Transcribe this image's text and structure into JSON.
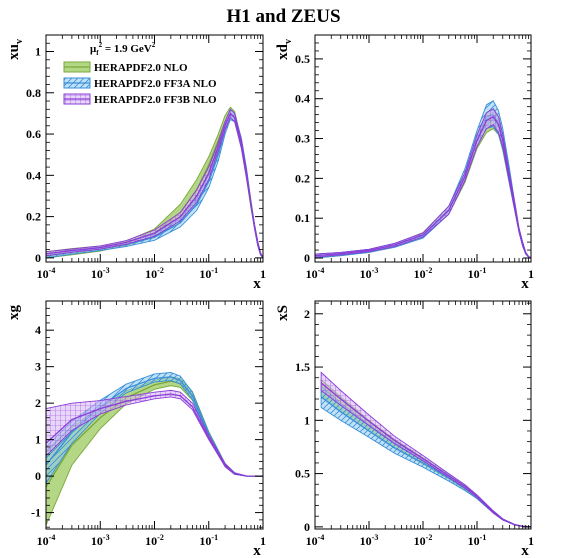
{
  "title": "H1 and ZEUS",
  "legend": {
    "scale_label": "μ",
    "scale_sub": "f",
    "scale_sup": "2",
    "scale_value": "= 1.9 GeV",
    "scale_value_sup": "2",
    "entries": [
      {
        "name": "HERAPDF2.0 NLO",
        "color": "#7aa83a",
        "fill": "#9bc95e",
        "pattern": "solid"
      },
      {
        "name": "HERAPDF2.0 FF3A NLO",
        "color": "#3a8fd8",
        "fill": "#8cc8f0",
        "pattern": "hatch"
      },
      {
        "name": "HERAPDF2.0 FF3B NLO",
        "color": "#8a3cd8",
        "fill": "#d6b5f5",
        "pattern": "grid"
      }
    ]
  },
  "x_ticks": [
    {
      "base": "10",
      "exp": "-4"
    },
    {
      "base": "10",
      "exp": "-3"
    },
    {
      "base": "10",
      "exp": "-2"
    },
    {
      "base": "10",
      "exp": "-1"
    },
    {
      "base": "1",
      "exp": ""
    }
  ],
  "chart_data": [
    {
      "id": "xuv",
      "type": "area",
      "xscale": "log",
      "xlim": [
        0.0001,
        1
      ],
      "ylim": [
        -0.02,
        1.08
      ],
      "ylabel_main": "xu",
      "ylabel_sub": "v",
      "xlabel": "x",
      "yticks": [
        0,
        0.2,
        0.4,
        0.6,
        0.8,
        1
      ],
      "ytick_labels": [
        "0",
        "0.2",
        "0.4",
        "0.6",
        "0.8",
        "1"
      ],
      "x": [
        0.0001,
        0.0003,
        0.001,
        0.003,
        0.01,
        0.03,
        0.06,
        0.1,
        0.15,
        0.2,
        0.25,
        0.3,
        0.4,
        0.5,
        0.6,
        0.7,
        0.8,
        0.9,
        1.0
      ],
      "series": [
        {
          "name": "HERAPDF2.0 NLO",
          "central": [
            0.015,
            0.03,
            0.045,
            0.07,
            0.12,
            0.22,
            0.33,
            0.45,
            0.57,
            0.66,
            0.7,
            0.68,
            0.55,
            0.4,
            0.26,
            0.15,
            0.07,
            0.02,
            0.0
          ],
          "lower": [
            0.0,
            0.015,
            0.033,
            0.06,
            0.1,
            0.18,
            0.28,
            0.42,
            0.55,
            0.64,
            0.68,
            0.66,
            0.53,
            0.38,
            0.24,
            0.14,
            0.06,
            0.015,
            0.0
          ],
          "upper": [
            0.03,
            0.045,
            0.058,
            0.082,
            0.14,
            0.26,
            0.38,
            0.49,
            0.6,
            0.69,
            0.73,
            0.71,
            0.57,
            0.42,
            0.28,
            0.16,
            0.08,
            0.025,
            0.0
          ]
        },
        {
          "name": "HERAPDF2.0 FF3A NLO",
          "central": [
            0.01,
            0.028,
            0.044,
            0.065,
            0.1,
            0.17,
            0.26,
            0.37,
            0.5,
            0.62,
            0.69,
            0.68,
            0.56,
            0.41,
            0.26,
            0.15,
            0.07,
            0.02,
            0.0
          ],
          "lower": [
            0.0,
            0.018,
            0.036,
            0.055,
            0.085,
            0.15,
            0.23,
            0.34,
            0.47,
            0.6,
            0.67,
            0.66,
            0.54,
            0.39,
            0.25,
            0.14,
            0.06,
            0.015,
            0.0
          ],
          "upper": [
            0.02,
            0.038,
            0.052,
            0.075,
            0.115,
            0.19,
            0.29,
            0.4,
            0.53,
            0.65,
            0.72,
            0.7,
            0.58,
            0.43,
            0.27,
            0.16,
            0.08,
            0.025,
            0.0
          ]
        },
        {
          "name": "HERAPDF2.0 FF3B NLO",
          "central": [
            0.02,
            0.035,
            0.05,
            0.075,
            0.12,
            0.2,
            0.3,
            0.41,
            0.54,
            0.64,
            0.7,
            0.68,
            0.55,
            0.4,
            0.26,
            0.15,
            0.07,
            0.02,
            0.0
          ],
          "lower": [
            0.01,
            0.027,
            0.042,
            0.066,
            0.105,
            0.18,
            0.27,
            0.38,
            0.52,
            0.62,
            0.68,
            0.66,
            0.53,
            0.38,
            0.25,
            0.14,
            0.06,
            0.015,
            0.0
          ],
          "upper": [
            0.03,
            0.043,
            0.058,
            0.084,
            0.135,
            0.22,
            0.33,
            0.44,
            0.56,
            0.66,
            0.72,
            0.7,
            0.57,
            0.42,
            0.27,
            0.16,
            0.08,
            0.025,
            0.0
          ]
        }
      ]
    },
    {
      "id": "xdv",
      "type": "area",
      "xscale": "log",
      "xlim": [
        0.0001,
        1
      ],
      "ylim": [
        -0.01,
        0.56
      ],
      "ylabel_main": "xd",
      "ylabel_sub": "v",
      "xlabel": "x",
      "yticks": [
        0,
        0.1,
        0.2,
        0.3,
        0.4,
        0.5
      ],
      "ytick_labels": [
        "0",
        "0.1",
        "0.2",
        "0.3",
        "0.4",
        "0.5"
      ],
      "x": [
        0.0001,
        0.0003,
        0.001,
        0.003,
        0.01,
        0.03,
        0.06,
        0.1,
        0.15,
        0.2,
        0.25,
        0.3,
        0.4,
        0.5,
        0.6,
        0.7,
        0.8,
        0.9,
        1.0
      ],
      "series": [
        {
          "name": "HERAPDF2.0 NLO",
          "central": [
            0.005,
            0.01,
            0.018,
            0.032,
            0.058,
            0.12,
            0.2,
            0.29,
            0.34,
            0.35,
            0.33,
            0.29,
            0.2,
            0.13,
            0.07,
            0.035,
            0.012,
            0.003,
            0.0
          ],
          "lower": [
            0.0,
            0.006,
            0.014,
            0.028,
            0.052,
            0.11,
            0.19,
            0.275,
            0.315,
            0.325,
            0.31,
            0.27,
            0.185,
            0.12,
            0.065,
            0.03,
            0.01,
            0.002,
            0.0
          ],
          "upper": [
            0.01,
            0.014,
            0.022,
            0.036,
            0.064,
            0.13,
            0.215,
            0.305,
            0.365,
            0.375,
            0.355,
            0.31,
            0.215,
            0.14,
            0.075,
            0.04,
            0.014,
            0.004,
            0.0
          ]
        },
        {
          "name": "HERAPDF2.0 FF3A NLO",
          "central": [
            0.005,
            0.01,
            0.018,
            0.032,
            0.056,
            0.12,
            0.21,
            0.3,
            0.355,
            0.36,
            0.34,
            0.3,
            0.205,
            0.13,
            0.07,
            0.035,
            0.012,
            0.003,
            0.0
          ],
          "lower": [
            0.0,
            0.006,
            0.014,
            0.027,
            0.05,
            0.11,
            0.195,
            0.28,
            0.325,
            0.33,
            0.31,
            0.275,
            0.185,
            0.12,
            0.065,
            0.03,
            0.01,
            0.002,
            0.0
          ],
          "upper": [
            0.01,
            0.014,
            0.022,
            0.037,
            0.062,
            0.13,
            0.225,
            0.32,
            0.385,
            0.395,
            0.37,
            0.325,
            0.225,
            0.14,
            0.075,
            0.04,
            0.014,
            0.004,
            0.0
          ]
        },
        {
          "name": "HERAPDF2.0 FF3B NLO",
          "central": [
            0.006,
            0.011,
            0.019,
            0.033,
            0.058,
            0.12,
            0.205,
            0.295,
            0.345,
            0.355,
            0.335,
            0.295,
            0.2,
            0.13,
            0.07,
            0.035,
            0.012,
            0.003,
            0.0
          ],
          "lower": [
            0.002,
            0.008,
            0.016,
            0.029,
            0.053,
            0.11,
            0.195,
            0.28,
            0.325,
            0.335,
            0.315,
            0.28,
            0.19,
            0.12,
            0.065,
            0.03,
            0.01,
            0.002,
            0.0
          ],
          "upper": [
            0.01,
            0.014,
            0.022,
            0.037,
            0.063,
            0.13,
            0.215,
            0.31,
            0.365,
            0.375,
            0.355,
            0.31,
            0.21,
            0.14,
            0.075,
            0.04,
            0.014,
            0.004,
            0.0
          ]
        }
      ]
    },
    {
      "id": "xg",
      "type": "area",
      "xscale": "log",
      "xlim": [
        0.0001,
        1
      ],
      "ylim": [
        -1.45,
        4.8
      ],
      "ylabel_main": "xg",
      "ylabel_sub": "",
      "xlabel": "x",
      "yticks": [
        -1,
        0,
        1,
        2,
        3,
        4
      ],
      "ytick_labels": [
        "-1",
        "0",
        "1",
        "2",
        "3",
        "4"
      ],
      "x": [
        0.0001,
        0.0003,
        0.001,
        0.003,
        0.01,
        0.02,
        0.03,
        0.05,
        0.1,
        0.2,
        0.3,
        0.5,
        0.7,
        1.0
      ],
      "series": [
        {
          "name": "HERAPDF2.0 NLO",
          "central": [
            -0.3,
            0.85,
            1.6,
            2.15,
            2.5,
            2.6,
            2.55,
            2.2,
            1.15,
            0.3,
            0.07,
            0.0,
            0.0,
            0.0
          ],
          "lower": [
            -1.35,
            0.3,
            1.3,
            1.98,
            2.38,
            2.48,
            2.43,
            2.08,
            1.08,
            0.25,
            0.05,
            0.0,
            0.0,
            0.0
          ],
          "upper": [
            0.7,
            1.35,
            1.88,
            2.33,
            2.63,
            2.72,
            2.67,
            2.32,
            1.22,
            0.35,
            0.09,
            0.0,
            0.0,
            0.0
          ]
        },
        {
          "name": "HERAPDF2.0 FF3A NLO",
          "central": [
            0.3,
            1.2,
            1.9,
            2.4,
            2.68,
            2.72,
            2.62,
            2.2,
            1.12,
            0.3,
            0.07,
            0.0,
            0.0,
            0.0
          ],
          "lower": [
            -0.2,
            0.9,
            1.72,
            2.28,
            2.58,
            2.62,
            2.52,
            2.1,
            1.05,
            0.26,
            0.05,
            0.0,
            0.0,
            0.0
          ],
          "upper": [
            0.8,
            1.5,
            2.08,
            2.52,
            2.8,
            2.84,
            2.74,
            2.3,
            1.2,
            0.34,
            0.09,
            0.0,
            0.0,
            0.0
          ]
        },
        {
          "name": "HERAPDF2.0 FF3B NLO",
          "central": [
            0.9,
            1.55,
            1.85,
            2.05,
            2.2,
            2.25,
            2.2,
            1.9,
            1.05,
            0.3,
            0.07,
            0.0,
            0.0,
            0.0
          ],
          "lower": [
            0.55,
            1.25,
            1.7,
            1.95,
            2.12,
            2.17,
            2.12,
            1.82,
            1.0,
            0.26,
            0.05,
            0.0,
            0.0,
            0.0
          ],
          "upper": [
            1.85,
            2.0,
            2.07,
            2.18,
            2.3,
            2.35,
            2.3,
            2.0,
            1.12,
            0.34,
            0.09,
            0.0,
            0.0,
            0.0
          ]
        }
      ]
    },
    {
      "id": "xS",
      "type": "area",
      "xscale": "log",
      "xlim": [
        0.0001,
        1
      ],
      "ylim": [
        -0.02,
        2.12
      ],
      "ylabel_main": "xS",
      "ylabel_sub": "",
      "xlabel": "x",
      "yticks": [
        0,
        0.5,
        1,
        1.5,
        2
      ],
      "ytick_labels": [
        "0",
        "0.5",
        "1",
        "1.5",
        "2"
      ],
      "x": [
        0.00013,
        0.0003,
        0.001,
        0.003,
        0.01,
        0.03,
        0.06,
        0.1,
        0.2,
        0.3,
        0.5,
        0.7,
        1.0
      ],
      "series": [
        {
          "name": "HERAPDF2.0 NLO",
          "central": [
            1.3,
            1.15,
            0.95,
            0.78,
            0.62,
            0.47,
            0.37,
            0.28,
            0.14,
            0.07,
            0.02,
            0.005,
            0.0
          ],
          "lower": [
            1.22,
            1.08,
            0.9,
            0.74,
            0.59,
            0.45,
            0.35,
            0.265,
            0.13,
            0.065,
            0.018,
            0.004,
            0.0
          ],
          "upper": [
            1.38,
            1.22,
            1.0,
            0.82,
            0.65,
            0.49,
            0.39,
            0.295,
            0.15,
            0.075,
            0.022,
            0.006,
            0.0
          ]
        },
        {
          "name": "HERAPDF2.0 FF3A NLO",
          "central": [
            1.22,
            1.08,
            0.9,
            0.74,
            0.6,
            0.46,
            0.36,
            0.28,
            0.14,
            0.07,
            0.02,
            0.005,
            0.0
          ],
          "lower": [
            1.12,
            1.0,
            0.84,
            0.69,
            0.56,
            0.43,
            0.34,
            0.265,
            0.13,
            0.065,
            0.018,
            0.004,
            0.0
          ],
          "upper": [
            1.32,
            1.16,
            0.96,
            0.79,
            0.64,
            0.49,
            0.38,
            0.295,
            0.15,
            0.075,
            0.022,
            0.006,
            0.0
          ]
        },
        {
          "name": "HERAPDF2.0 FF3B NLO",
          "central": [
            1.35,
            1.2,
            0.99,
            0.81,
            0.64,
            0.48,
            0.38,
            0.29,
            0.14,
            0.07,
            0.02,
            0.005,
            0.0
          ],
          "lower": [
            1.28,
            1.14,
            0.95,
            0.78,
            0.62,
            0.465,
            0.365,
            0.275,
            0.13,
            0.065,
            0.018,
            0.004,
            0.0
          ],
          "upper": [
            1.45,
            1.28,
            1.05,
            0.85,
            0.67,
            0.5,
            0.395,
            0.3,
            0.15,
            0.075,
            0.022,
            0.006,
            0.0
          ]
        }
      ]
    }
  ]
}
